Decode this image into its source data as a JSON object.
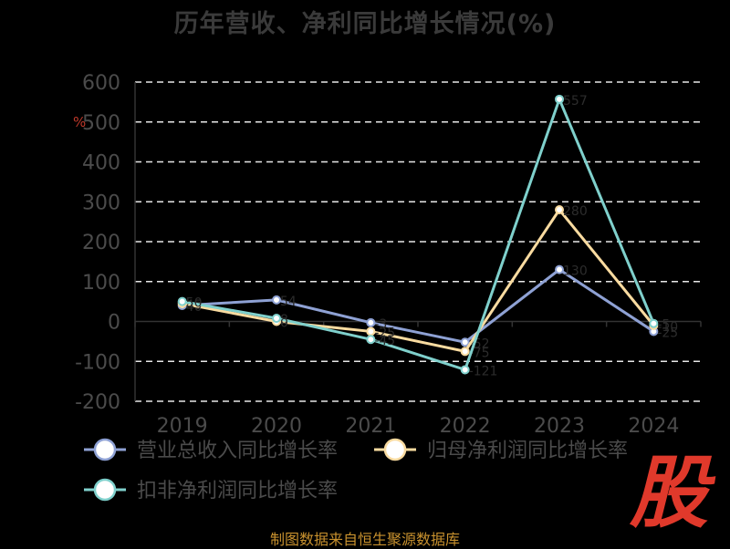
{
  "chart_data": {
    "type": "line",
    "title": "历年营收、净利同比增长情况(%)",
    "ylabel": "%",
    "xlabel": "",
    "categories": [
      "2019",
      "2020",
      "2021",
      "2022",
      "2023",
      "2024"
    ],
    "ylim": [
      -200,
      600
    ],
    "yticks": [
      "600",
      "500",
      "400",
      "300",
      "200",
      "100",
      "0",
      "-100",
      "-200"
    ],
    "grid": true,
    "legend_position": "bottom",
    "series": [
      {
        "name": "营业总收入同比增长率",
        "color": "#8ea1d4",
        "values": [
          40,
          54,
          -3,
          -52,
          130,
          -25
        ]
      },
      {
        "name": "归母净利润同比增长率",
        "color": "#f9dba0",
        "values": [
          45,
          0,
          -25,
          -75,
          280,
          -10
        ]
      },
      {
        "name": "扣非净利润同比增长率",
        "color": "#7fd0cc",
        "values": [
          50,
          8,
          -45,
          -121,
          557,
          -5
        ]
      }
    ]
  },
  "source": "制图数据来自恒生聚源数据库",
  "logo": {
    "text": "股",
    "color": "#e0392b"
  }
}
